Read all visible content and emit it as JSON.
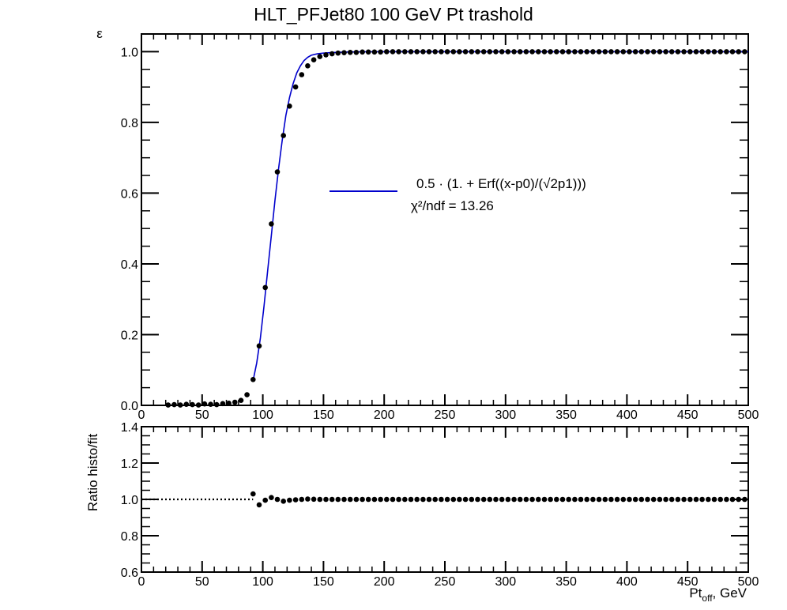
{
  "chart_data": [
    {
      "type": "scatter",
      "title": "HLT_PFJet80 100 GeV Pt trashold",
      "xlabel": "",
      "ylabel": "ε",
      "xlim": [
        0,
        500
      ],
      "ylim": [
        0,
        1.05
      ],
      "x_ticks": [
        0,
        50,
        100,
        150,
        200,
        250,
        300,
        350,
        400,
        450,
        500
      ],
      "y_ticks": [
        0.0,
        0.2,
        0.4,
        0.6,
        0.8,
        1.0
      ],
      "x_tick_labels": [
        "0",
        "50",
        "100",
        "150",
        "200",
        "250",
        "300",
        "350",
        "400",
        "450",
        "500"
      ],
      "y_tick_labels": [
        "0.0",
        "0.2",
        "0.4",
        "0.6",
        "0.8",
        "1.0"
      ],
      "grid": false,
      "series": [
        {
          "type": "points",
          "color": "#000000",
          "x": [
            22,
            27,
            32,
            37,
            42,
            47,
            52,
            57,
            62,
            67,
            72,
            77,
            82,
            87,
            92,
            97,
            102,
            107,
            112,
            117,
            122,
            127,
            132,
            137,
            142,
            147,
            152,
            157,
            162,
            167,
            172,
            177,
            182,
            187,
            192,
            197,
            202,
            207,
            212,
            217,
            222,
            227,
            232,
            237,
            242,
            247,
            252,
            257,
            262,
            267,
            272,
            277,
            282,
            287,
            292,
            297,
            302,
            307,
            312,
            317,
            322,
            327,
            332,
            337,
            342,
            347,
            352,
            357,
            362,
            367,
            372,
            377,
            382,
            387,
            392,
            397,
            402,
            407,
            412,
            417,
            422,
            427,
            432,
            437,
            442,
            447,
            452,
            457,
            462,
            467,
            472,
            477,
            482,
            487,
            492,
            497
          ],
          "y": [
            0.001,
            0.002,
            0.001,
            0.003,
            0.002,
            0.001,
            0.004,
            0.003,
            0.002,
            0.005,
            0.006,
            0.009,
            0.014,
            0.03,
            0.073,
            0.168,
            0.333,
            0.513,
            0.66,
            0.763,
            0.846,
            0.9,
            0.935,
            0.96,
            0.977,
            0.986,
            0.991,
            0.994,
            0.996,
            0.997,
            0.998,
            0.998,
            0.999,
            0.999,
            0.999,
            0.999,
            1.0,
            1.0,
            1.0,
            1.0,
            1.0,
            1.0,
            1.0,
            1.0,
            1.0,
            1.0,
            1.0,
            1.0,
            1.0,
            1.0,
            1.0,
            1.0,
            1.0,
            1.0,
            1.0,
            1.0,
            1.0,
            1.0,
            1.0,
            1.0,
            1.0,
            1.0,
            1.0,
            1.0,
            1.0,
            1.0,
            1.0,
            1.0,
            1.0,
            1.0,
            1.0,
            1.0,
            1.0,
            1.0,
            1.0,
            1.0,
            1.0,
            1.0,
            1.0,
            1.0,
            1.0,
            1.0,
            1.0,
            1.0,
            1.0,
            1.0,
            1.0,
            1.0,
            1.0,
            1.0,
            1.0,
            1.0,
            1.0,
            1.0,
            1.0,
            1.0
          ]
        },
        {
          "type": "fit-line",
          "color": "#0000cc",
          "x": [
            92,
            95,
            98,
            101,
            104,
            107,
            110,
            113,
            116,
            119,
            122,
            125,
            128,
            131,
            134,
            137,
            140,
            145,
            150,
            155,
            160,
            170,
            180,
            190,
            200,
            220,
            250,
            300,
            350,
            400,
            450,
            500
          ],
          "y": [
            0.07,
            0.12,
            0.19,
            0.28,
            0.38,
            0.48,
            0.58,
            0.67,
            0.75,
            0.82,
            0.87,
            0.91,
            0.94,
            0.96,
            0.975,
            0.984,
            0.99,
            0.994,
            0.996,
            0.997,
            0.998,
            0.999,
            0.9995,
            0.9998,
            1.0,
            1.0,
            1.0,
            1.0,
            1.0,
            1.0,
            1.0,
            1.0
          ]
        }
      ],
      "legend": {
        "position": "center-right",
        "entries": [
          {
            "label": "0.5 · (1. + Erf((x-p0)/(√2p1)))",
            "color": "#0000cc",
            "marker": "line"
          },
          {
            "label": "χ²/ndf = 13.26",
            "color": "",
            "marker": "none"
          }
        ]
      }
    },
    {
      "type": "scatter",
      "title": "",
      "xlabel": "Pt_off, GeV",
      "ylabel": "Ratio histo/fit",
      "xlim": [
        0,
        500
      ],
      "ylim": [
        0.6,
        1.4
      ],
      "x_ticks": [
        0,
        50,
        100,
        150,
        200,
        250,
        300,
        350,
        400,
        450,
        500
      ],
      "y_ticks": [
        0.6,
        0.8,
        1.0,
        1.2,
        1.4
      ],
      "x_tick_labels": [
        "0",
        "50",
        "100",
        "150",
        "200",
        "250",
        "300",
        "350",
        "400",
        "450",
        "500"
      ],
      "y_tick_labels": [
        "0.6",
        "0.8",
        "1.0",
        "1.2",
        "1.4"
      ],
      "grid": false,
      "reference_line": {
        "y": 1.0,
        "x_from": 0,
        "x_to": 92,
        "style": "dotted"
      },
      "series": [
        {
          "type": "points",
          "color": "#000000",
          "x": [
            92,
            97,
            102,
            107,
            112,
            117,
            122,
            127,
            132,
            137,
            142,
            147,
            152,
            157,
            162,
            167,
            172,
            177,
            182,
            187,
            192,
            197,
            202,
            207,
            212,
            217,
            222,
            227,
            232,
            237,
            242,
            247,
            252,
            257,
            262,
            267,
            272,
            277,
            282,
            287,
            292,
            297,
            302,
            307,
            312,
            317,
            322,
            327,
            332,
            337,
            342,
            347,
            352,
            357,
            362,
            367,
            372,
            377,
            382,
            387,
            392,
            397,
            402,
            407,
            412,
            417,
            422,
            427,
            432,
            437,
            442,
            447,
            452,
            457,
            462,
            467,
            472,
            477,
            482,
            487,
            492,
            497
          ],
          "y": [
            1.03,
            0.97,
            0.995,
            1.01,
            1.0,
            0.99,
            0.995,
            0.998,
            1.0,
            1.002,
            1.001,
            1.0,
            1.0,
            1.0,
            1.0,
            1.0,
            1.0,
            1.0,
            1.0,
            1.0,
            1.0,
            1.0,
            1.0,
            1.0,
            1.0,
            1.0,
            1.0,
            1.0,
            1.0,
            1.0,
            1.0,
            1.0,
            1.0,
            1.0,
            1.0,
            1.0,
            1.0,
            1.0,
            1.0,
            1.0,
            1.0,
            1.0,
            1.0,
            1.0,
            1.0,
            1.0,
            1.0,
            1.0,
            1.0,
            1.0,
            1.0,
            1.0,
            1.0,
            1.0,
            1.0,
            1.0,
            1.0,
            1.0,
            1.0,
            1.0,
            1.0,
            1.0,
            1.0,
            1.0,
            1.0,
            1.0,
            1.0,
            1.0,
            1.0,
            1.0,
            1.0,
            1.0,
            1.0,
            1.0,
            1.0,
            1.0,
            1.0,
            1.0,
            1.0,
            1.0,
            1.0,
            1.0
          ]
        }
      ]
    }
  ]
}
